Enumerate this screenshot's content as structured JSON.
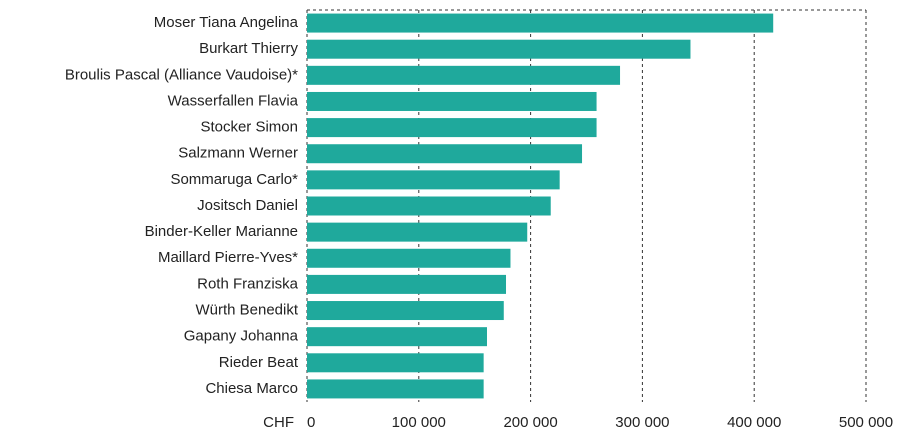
{
  "chart_data": {
    "type": "bar",
    "orientation": "horizontal",
    "categories": [
      "Moser Tiana Angelina",
      "Burkart Thierry",
      "Broulis Pascal (Alliance Vaudoise)*",
      "Wasserfallen Flavia",
      "Stocker Simon",
      "Salzmann Werner",
      "Sommaruga Carlo*",
      "Jositsch Daniel",
      "Binder-Keller Marianne",
      "Maillard Pierre-Yves*",
      "Roth Franziska",
      "Würth Benedikt",
      "Gapany Johanna",
      "Rieder Beat",
      "Chiesa Marco"
    ],
    "values": [
      417000,
      343000,
      280000,
      259000,
      259000,
      246000,
      226000,
      218000,
      197000,
      182000,
      178000,
      176000,
      161000,
      158000,
      158000
    ],
    "color": "#1fa99c",
    "x_label": "CHF",
    "xlim": [
      0,
      500000
    ],
    "xticks": [
      0,
      {
        "value": 100000,
        "label": "100 000"
      },
      {
        "value": 200000,
        "label": "200 000"
      },
      {
        "value": 300000,
        "label": "300 000"
      },
      {
        "value": 400000,
        "label": "400 000"
      },
      {
        "value": 500000,
        "label": "500 000"
      }
    ],
    "grid": true
  }
}
